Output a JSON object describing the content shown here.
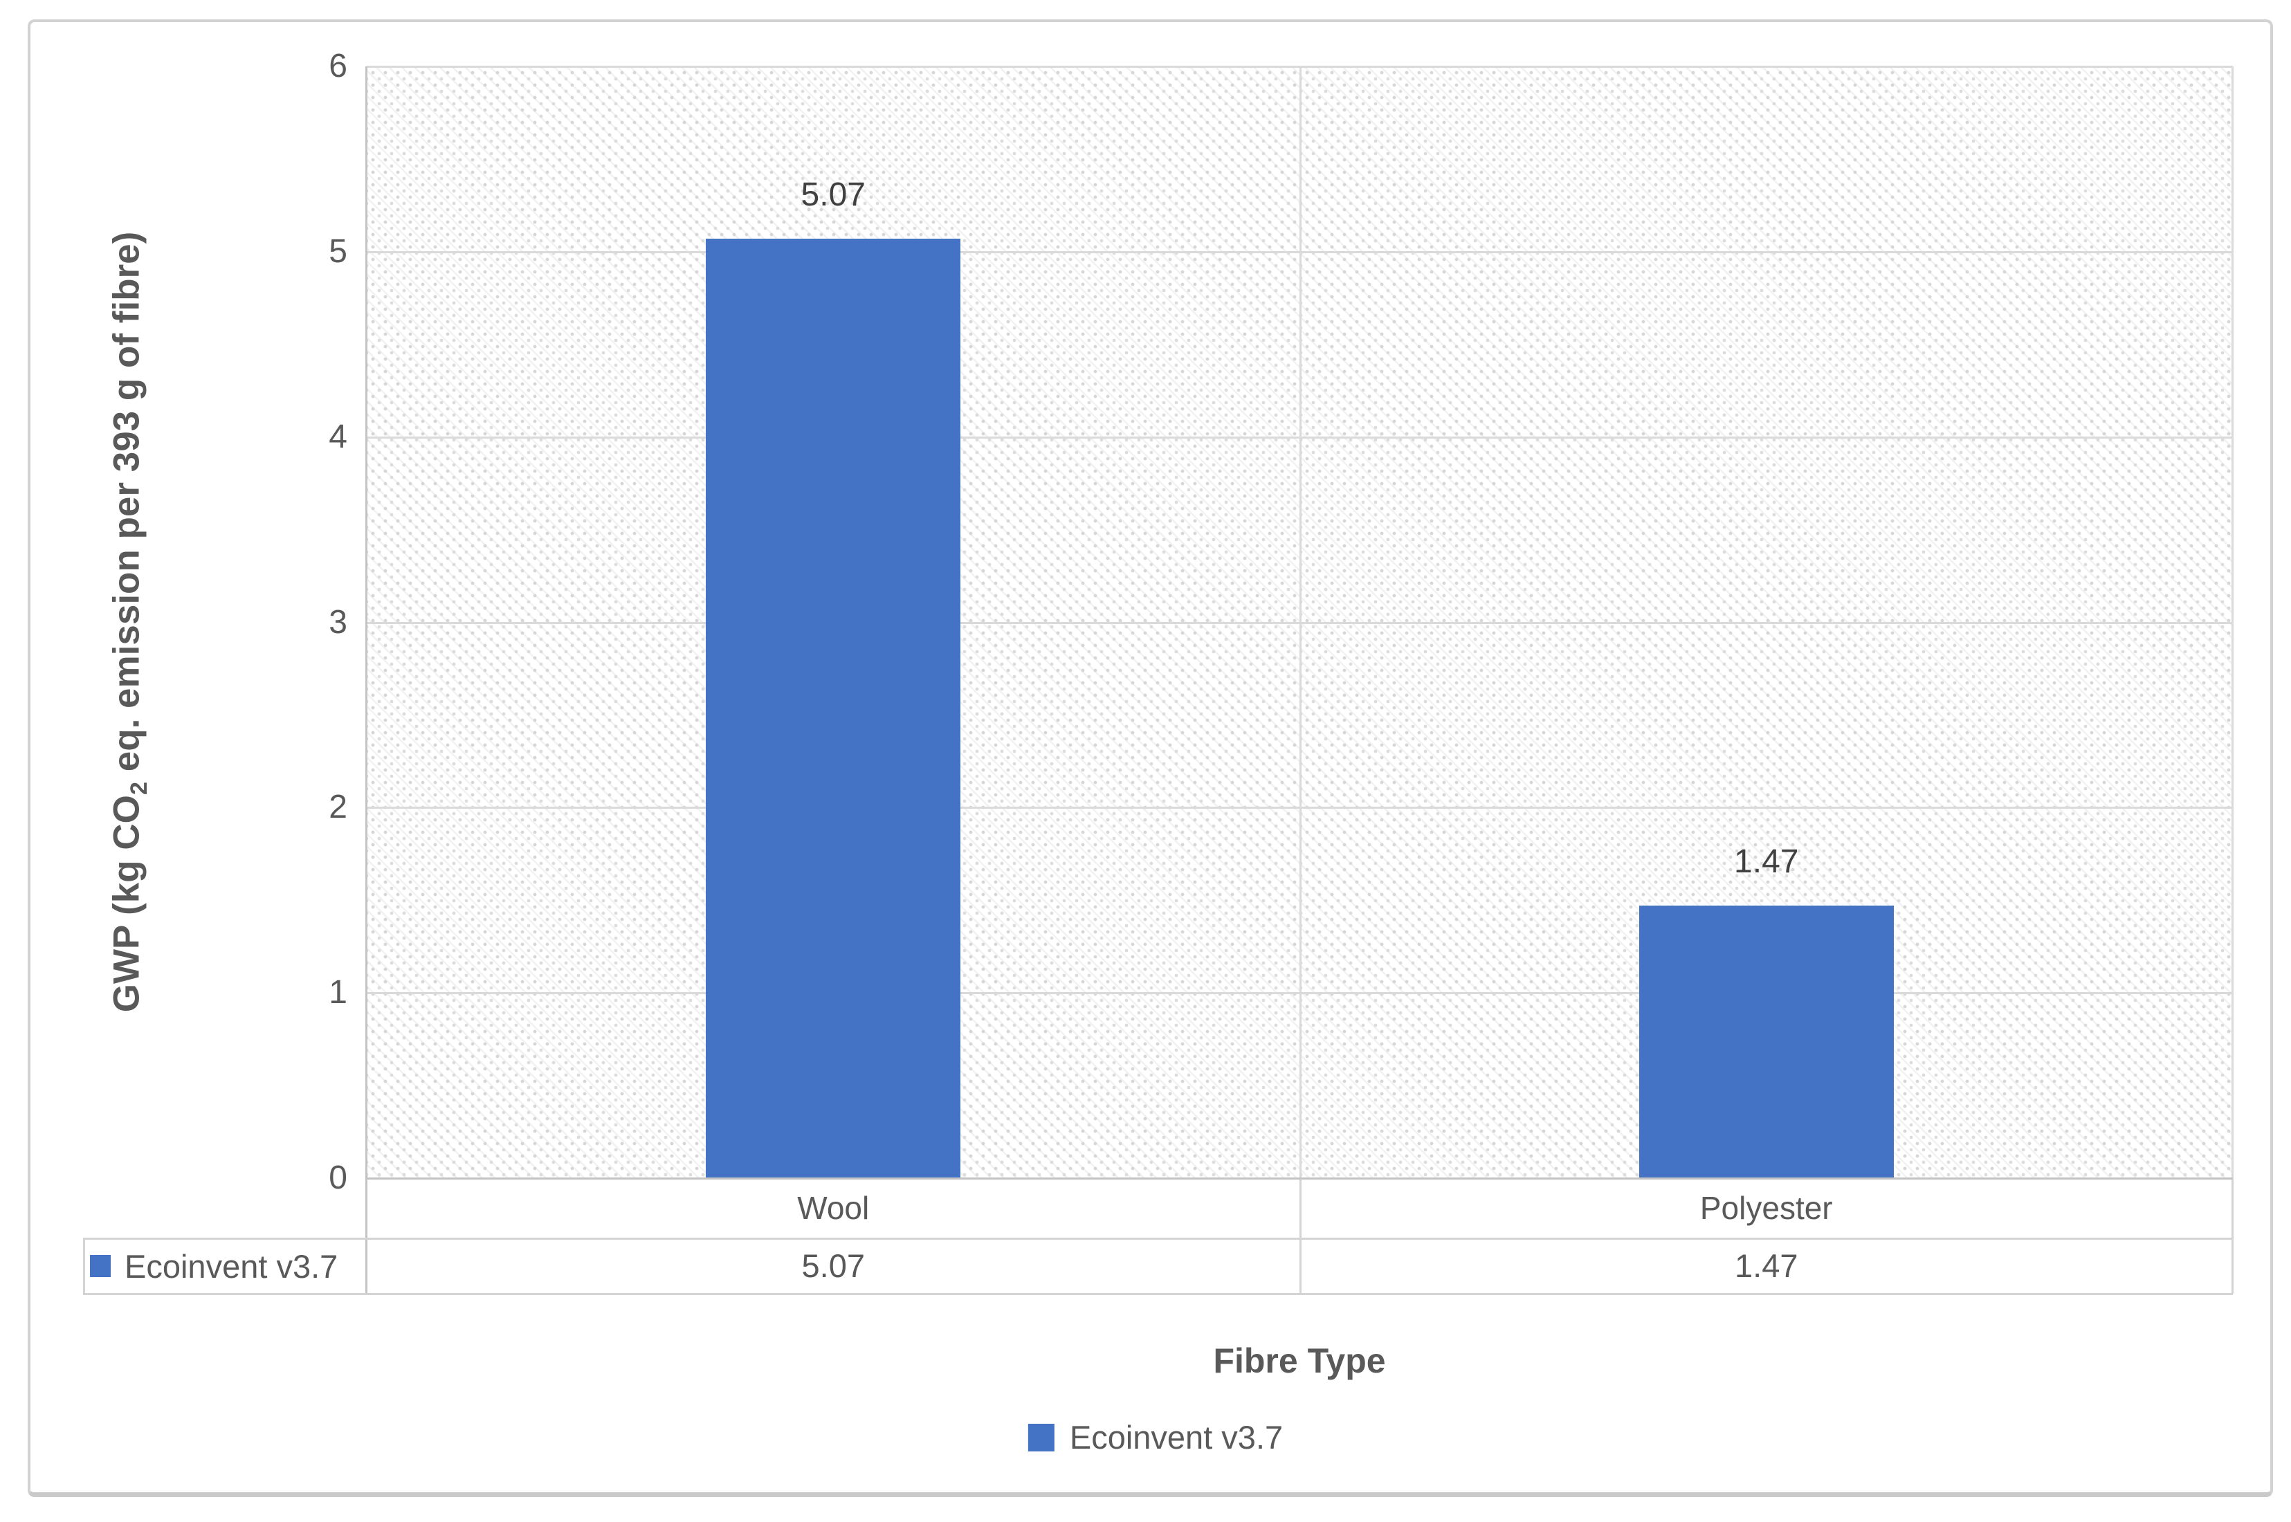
{
  "chart_data": {
    "type": "bar",
    "title": "",
    "categories": [
      "Wool",
      "Polyester"
    ],
    "series": [
      {
        "name": "Ecoinvent v3.7",
        "color": "#4472C4",
        "values": [
          5.07,
          1.47
        ]
      }
    ],
    "data_labels": [
      "5.07",
      "1.47"
    ],
    "x_axis": {
      "title": "Fibre Type"
    },
    "y_axis": {
      "title": "GWP (kg CO₂ eq. emission per 393 g of fibre)",
      "title_parts": {
        "pre": "GWP (kg CO",
        "sub": "2",
        "post": " eq. emission per 393 g of fibre)"
      },
      "ticks": [
        6,
        5,
        4,
        3,
        2,
        1,
        0
      ],
      "ylim": [
        0,
        6
      ]
    },
    "legend": {
      "position": "bottom",
      "entries": [
        "Ecoinvent v3.7"
      ]
    },
    "data_table": {
      "row_label": "Ecoinvent v3.7",
      "values": [
        "5.07",
        "1.47"
      ]
    },
    "grid": {
      "horizontal_major": true,
      "vertical_category_divider": true
    },
    "plot_background": "light diagonal dotted hatch pattern"
  },
  "colors": {
    "bar": "#4472C4",
    "tick_text": "#595959",
    "data_label_text": "#404040",
    "gridline": "#DADADA",
    "axis_line": "#C3C3C3",
    "table_border": "#D4D4D4",
    "frame_border": "#D2D2D2"
  }
}
